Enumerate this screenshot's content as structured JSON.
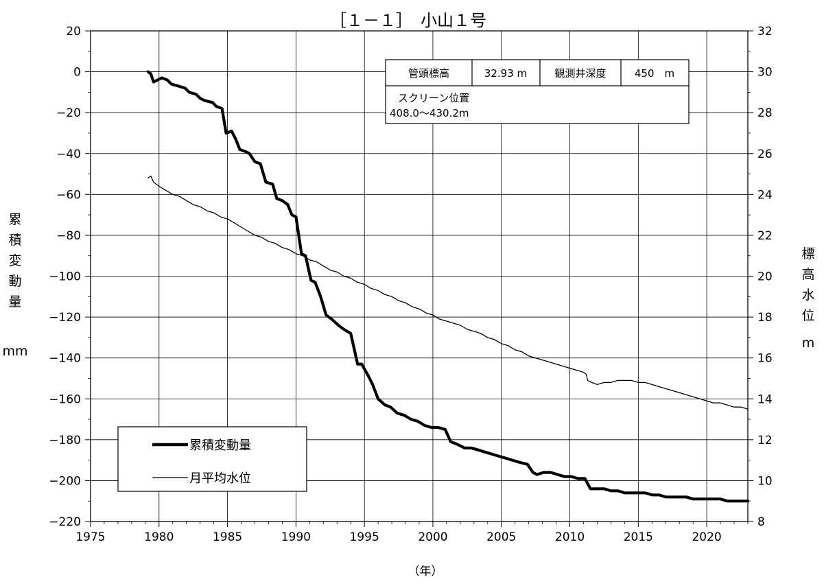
{
  "chart_data": {
    "type": "line",
    "title": "［１－１］　小山１号",
    "xlabel": "（年）",
    "ylabel_left": [
      "累",
      "積",
      "変",
      "動",
      "量",
      "mm"
    ],
    "ylabel_right": [
      "標",
      "高",
      "水",
      "位",
      "m"
    ],
    "xlim": [
      1975,
      2023
    ],
    "x_ticks": [
      1975,
      1980,
      1985,
      1990,
      1995,
      2000,
      2005,
      2010,
      2015,
      2020
    ],
    "x_tick_labels": [
      "1975",
      "1980",
      "1985",
      "1990",
      "1995",
      "2000",
      "2005",
      "2010",
      "2015",
      "2020"
    ],
    "ylim_left": [
      -220,
      20
    ],
    "y_left_ticks": [
      20,
      0,
      -20,
      -40,
      -60,
      -80,
      -100,
      -120,
      -140,
      -160,
      -180,
      -200,
      -220
    ],
    "y_left_tick_labels": [
      "20",
      "0",
      "−20",
      "−40",
      "−60",
      "−80",
      "−100",
      "−120",
      "−140",
      "−160",
      "−180",
      "−200",
      "−220"
    ],
    "ylim_right": [
      8,
      32
    ],
    "y_right_ticks": [
      32,
      30,
      28,
      26,
      24,
      22,
      20,
      18,
      16,
      14,
      12,
      10,
      8
    ],
    "y_right_tick_labels": [
      "32",
      "30",
      "28",
      "26",
      "24",
      "22",
      "20",
      "18",
      "16",
      "14",
      "12",
      "10",
      "8"
    ],
    "grid": true,
    "legend_position": "bottom-left",
    "info_box": {
      "label1": "管頭標高",
      "value1": "32.93 m",
      "label2": "観測井深度",
      "value2": "450　m",
      "screen_label": "スクリーン位置",
      "screen_value": "408.0～430.2m"
    },
    "series": [
      {
        "name": "累積変動量",
        "axis": "left",
        "style": "thick",
        "x": [
          1979.2,
          1979.4,
          1979.6,
          1979.9,
          1980.2,
          1980.6,
          1980.9,
          1981.4,
          1981.9,
          1982.2,
          1982.7,
          1983.0,
          1983.3,
          1983.9,
          1984.2,
          1984.6,
          1984.9,
          1985.3,
          1985.6,
          1985.9,
          1986.3,
          1986.6,
          1987.0,
          1987.4,
          1987.8,
          1988.3,
          1988.6,
          1989.0,
          1989.4,
          1989.7,
          1990.0,
          1990.4,
          1990.7,
          1991.1,
          1991.4,
          1991.8,
          1992.2,
          1992.6,
          1993.1,
          1993.5,
          1994.0,
          1994.5,
          1994.8,
          1995.3,
          1995.6,
          1996.0,
          1996.5,
          1996.9,
          1997.4,
          1997.9,
          1998.4,
          1998.9,
          1999.4,
          1999.9,
          2000.4,
          2000.9,
          2001.3,
          2001.7,
          2002.3,
          2002.8,
          2003.3,
          2003.8,
          2004.3,
          2004.8,
          2005.3,
          2005.8,
          2006.3,
          2006.9,
          2007.3,
          2007.6,
          2008.1,
          2008.6,
          2009.1,
          2009.6,
          2010.1,
          2010.6,
          2011.1,
          2011.5,
          2012.0,
          2012.5,
          2013.0,
          2013.5,
          2014.0,
          2014.5,
          2015.0,
          2015.5,
          2016.0,
          2016.5,
          2017.0,
          2017.5,
          2018.0,
          2018.5,
          2019.0,
          2019.5,
          2020.0,
          2020.5,
          2021.0,
          2021.5,
          2022.0,
          2022.5,
          2023.0
        ],
        "y": [
          0,
          -1,
          -5,
          -4,
          -3,
          -4,
          -6,
          -7,
          -8,
          -10,
          -11,
          -13,
          -14,
          -15,
          -17,
          -18,
          -30,
          -29,
          -33,
          -38,
          -39,
          -40,
          -44,
          -45,
          -54,
          -55,
          -62,
          -63,
          -65,
          -70,
          -71,
          -89,
          -90,
          -102,
          -103,
          -110,
          -119,
          -121,
          -124,
          -126,
          -128,
          -143,
          -143,
          -149,
          -153,
          -160,
          -163,
          -164,
          -167,
          -168,
          -170,
          -171,
          -173,
          -174,
          -174,
          -175,
          -181,
          -182,
          -184,
          -184,
          -185,
          -186,
          -187,
          -188,
          -189,
          -190,
          -191,
          -192,
          -196,
          -197,
          -196,
          -196,
          -197,
          -198,
          -198,
          -199,
          -199,
          -204,
          -204,
          -204,
          -205,
          -205,
          -206,
          -206,
          -206,
          -206,
          -207,
          -207,
          -208,
          -208,
          -208,
          -208,
          -209,
          -209,
          -209,
          -209,
          -209,
          -210,
          -210,
          -210,
          -210
        ]
      },
      {
        "name": "月平均水位",
        "axis": "right",
        "style": "thin",
        "x": [
          1979.2,
          1979.4,
          1979.6,
          1980.0,
          1980.5,
          1981.0,
          1981.5,
          1982.0,
          1982.5,
          1983.0,
          1983.5,
          1984.0,
          1984.5,
          1985.0,
          1985.5,
          1986.0,
          1986.5,
          1987.0,
          1987.5,
          1988.0,
          1988.5,
          1989.0,
          1989.5,
          1990.0,
          1990.5,
          1991.0,
          1991.5,
          1992.0,
          1992.5,
          1993.0,
          1993.5,
          1994.0,
          1994.5,
          1995.0,
          1995.5,
          1996.0,
          1996.5,
          1997.0,
          1997.5,
          1998.0,
          1998.5,
          1999.0,
          1999.5,
          2000.0,
          2000.5,
          2001.0,
          2001.5,
          2002.0,
          2002.5,
          2003.0,
          2003.5,
          2004.0,
          2004.5,
          2005.0,
          2005.5,
          2006.0,
          2006.5,
          2007.0,
          2007.5,
          2008.0,
          2008.5,
          2009.0,
          2009.5,
          2010.0,
          2010.5,
          2011.0,
          2011.2,
          2011.3,
          2011.6,
          2012.0,
          2012.5,
          2013.0,
          2013.5,
          2014.0,
          2014.5,
          2015.0,
          2015.5,
          2016.0,
          2016.5,
          2017.0,
          2017.5,
          2018.0,
          2018.5,
          2019.0,
          2019.5,
          2020.0,
          2020.5,
          2021.0,
          2021.5,
          2022.0,
          2022.5,
          2023.0
        ],
        "y": [
          24.8,
          24.9,
          24.6,
          24.4,
          24.2,
          24.0,
          23.9,
          23.7,
          23.5,
          23.4,
          23.2,
          23.1,
          22.9,
          22.8,
          22.6,
          22.4,
          22.2,
          22.0,
          21.9,
          21.7,
          21.6,
          21.4,
          21.3,
          21.1,
          21.0,
          20.8,
          20.7,
          20.5,
          20.3,
          20.2,
          20.0,
          19.9,
          19.7,
          19.6,
          19.4,
          19.3,
          19.1,
          19.0,
          18.8,
          18.7,
          18.5,
          18.4,
          18.2,
          18.1,
          17.9,
          17.8,
          17.7,
          17.6,
          17.4,
          17.3,
          17.2,
          17.0,
          16.9,
          16.7,
          16.6,
          16.4,
          16.3,
          16.1,
          16.0,
          15.9,
          15.8,
          15.7,
          15.6,
          15.5,
          15.4,
          15.3,
          15.2,
          14.9,
          14.8,
          14.7,
          14.8,
          14.8,
          14.9,
          14.9,
          14.9,
          14.8,
          14.8,
          14.7,
          14.6,
          14.5,
          14.4,
          14.3,
          14.2,
          14.1,
          14.0,
          13.9,
          13.8,
          13.8,
          13.7,
          13.6,
          13.6,
          13.5
        ]
      }
    ]
  }
}
